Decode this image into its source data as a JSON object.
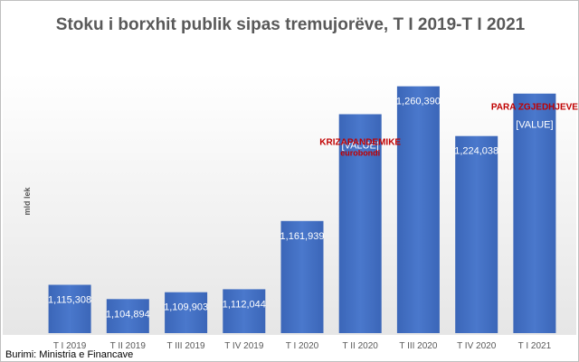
{
  "colors": {
    "bar": "#4472C4",
    "bar_top": "#3F6CC0",
    "bar_label": "#FFFFFF",
    "annotation": "#C00000",
    "axis_text": "#595959",
    "grid": "#D9D9D9",
    "background_top": "#FFFFFF",
    "background_bottom": "#E8E8E8"
  },
  "source": "Burimi: Ministria e Financave",
  "chart_data": {
    "type": "bar",
    "title": "Stoku i borxhit publik sipas tremujorëve, T I 2019-T I 2021",
    "ylabel": "mld lek",
    "xlabel": "",
    "categories": [
      "T I 2019",
      "T II 2019",
      "T III 2019",
      "T IV 2019",
      "T I 2020",
      "T II 2020",
      "T III 2020",
      "T IV 2020",
      "T I 2021"
    ],
    "values": [
      1115308,
      1104894,
      1109903,
      1112044,
      1161939,
      1240000,
      1260390,
      1224038,
      1255000
    ],
    "value_labels": [
      "1,115,308",
      "1,104,894",
      "1,109,903",
      "1,112,044",
      "1,161,939",
      "[VALUE]",
      "1,260,390",
      "1,224,038",
      "[VALUE]"
    ],
    "ylim": [
      1080000,
      1270000
    ],
    "grid": false,
    "legend": "none",
    "annotations": [
      {
        "category": "T II 2020",
        "lines": [
          "KRIZAPANDEMIKE",
          "eurobondi"
        ]
      },
      {
        "category": "T I 2021",
        "lines": [
          "PARA ZGJEDHJEVE"
        ]
      }
    ]
  }
}
